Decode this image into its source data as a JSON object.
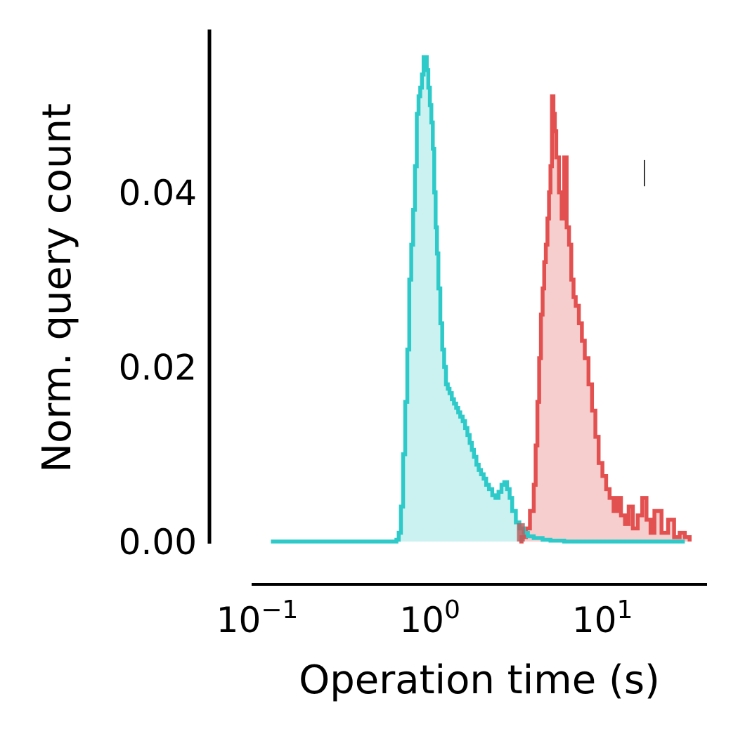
{
  "chart_data": {
    "type": "histogram-step",
    "xlabel": "Operation time (s)",
    "ylabel": "Norm. query count",
    "x_scale": "log",
    "xlim": [
      0.1,
      40
    ],
    "ylim": [
      0,
      0.056
    ],
    "y_ticks": [
      {
        "value": 0.0,
        "label": "0.00"
      },
      {
        "value": 0.02,
        "label": "0.02"
      },
      {
        "value": 0.04,
        "label": "0.04"
      }
    ],
    "x_ticks": [
      {
        "value": 0.1,
        "base": "10",
        "exp": "−1"
      },
      {
        "value": 1,
        "base": "10",
        "exp": "0"
      },
      {
        "value": 10,
        "base": "10",
        "exp": "1"
      }
    ],
    "grid": false,
    "legend": "none",
    "series": [
      {
        "color": "#2ecac9",
        "fill_color": "#c8f0ef",
        "x": [
          0.12,
          0.2,
          0.3,
          0.45,
          0.6,
          0.64,
          0.66,
          0.68,
          0.7,
          0.72,
          0.74,
          0.76,
          0.78,
          0.8,
          0.82,
          0.84,
          0.86,
          0.88,
          0.9,
          0.92,
          0.94,
          0.96,
          0.98,
          1.0,
          1.02,
          1.04,
          1.06,
          1.08,
          1.1,
          1.12,
          1.15,
          1.18,
          1.21,
          1.24,
          1.27,
          1.3,
          1.34,
          1.38,
          1.42,
          1.46,
          1.5,
          1.55,
          1.6,
          1.65,
          1.7,
          1.75,
          1.8,
          1.86,
          1.92,
          1.98,
          2.05,
          2.12,
          2.2,
          2.3,
          2.4,
          2.5,
          2.6,
          2.7,
          2.8,
          2.9,
          3.0,
          3.15,
          3.3,
          3.5,
          3.7,
          4.0,
          4.5,
          5.0,
          6.0,
          8.0,
          12.0,
          20.0,
          30.0
        ],
        "y": [
          0,
          0,
          0,
          0,
          0,
          0.0002,
          0.001,
          0.004,
          0.01,
          0.016,
          0.022,
          0.03,
          0.034,
          0.038,
          0.043,
          0.049,
          0.051,
          0.052,
          0.0535,
          0.0555,
          0.0555,
          0.054,
          0.052,
          0.05,
          0.048,
          0.045,
          0.04,
          0.036,
          0.033,
          0.029,
          0.025,
          0.022,
          0.02,
          0.018,
          0.0175,
          0.017,
          0.0163,
          0.0158,
          0.0153,
          0.0148,
          0.0143,
          0.0138,
          0.013,
          0.0122,
          0.0113,
          0.0105,
          0.0097,
          0.0088,
          0.0082,
          0.0077,
          0.0072,
          0.0065,
          0.006,
          0.0053,
          0.005,
          0.0057,
          0.0065,
          0.0068,
          0.006,
          0.005,
          0.0035,
          0.0022,
          0.0015,
          0.001,
          0.0006,
          0.0004,
          0.0002,
          0.0001,
          0.0,
          0.0,
          0.0,
          0.0,
          0.0
        ]
      },
      {
        "color": "#e35050",
        "fill_color": "#f6cbcb",
        "x": [
          3.3,
          3.4,
          3.6,
          3.8,
          4.0,
          4.1,
          4.2,
          4.3,
          4.4,
          4.5,
          4.6,
          4.7,
          4.8,
          4.9,
          5.0,
          5.1,
          5.2,
          5.3,
          5.4,
          5.6,
          5.8,
          6.0,
          6.2,
          6.4,
          6.6,
          6.8,
          7.0,
          7.3,
          7.6,
          7.9,
          8.3,
          8.7,
          9.1,
          9.5,
          10.0,
          10.5,
          11.0,
          11.6,
          12.2,
          12.8,
          13.5,
          14.2,
          15.0,
          16.0,
          17.0,
          18.0,
          19.0,
          20.0,
          22.0,
          24.0,
          26.0,
          28.0,
          30.0,
          32.0
        ],
        "y": [
          0,
          0.0005,
          0.0015,
          0.0035,
          0.0065,
          0.011,
          0.016,
          0.021,
          0.026,
          0.029,
          0.032,
          0.034,
          0.037,
          0.04,
          0.043,
          0.051,
          0.049,
          0.047,
          0.044,
          0.04,
          0.037,
          0.044,
          0.036,
          0.034,
          0.03,
          0.028,
          0.027,
          0.025,
          0.023,
          0.021,
          0.018,
          0.015,
          0.012,
          0.009,
          0.0075,
          0.006,
          0.005,
          0.0035,
          0.005,
          0.003,
          0.002,
          0.004,
          0.0015,
          0.003,
          0.005,
          0.0025,
          0.001,
          0.0035,
          0.001,
          0.0025,
          0.0005,
          0.001,
          0.0005,
          0.0
        ]
      }
    ],
    "overlap_patch": {
      "x_start": 3.2,
      "x_end": 3.55,
      "y": 0.0021,
      "color": "#b56060"
    },
    "stray_marker": {
      "x": 17.5,
      "y": 0.0422,
      "height": 0.003
    }
  }
}
